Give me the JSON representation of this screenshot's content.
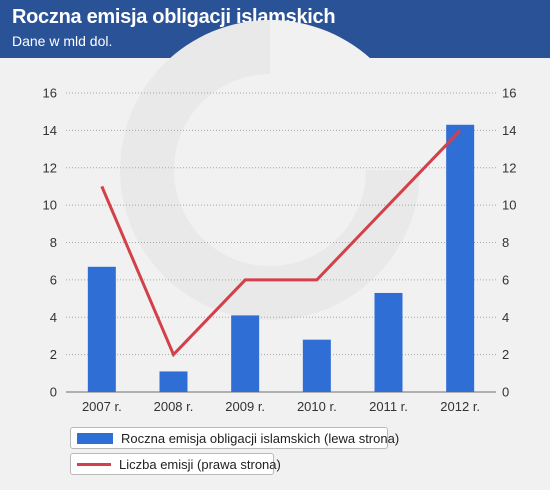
{
  "header": {
    "title": "Roczna emisja obligacji islamskich",
    "subtitle": "Dane w mld dol."
  },
  "colors": {
    "header_bg": "#2a5296",
    "bar": "#2f6fd5",
    "line": "#d4404a"
  },
  "chart_data": {
    "type": "bar",
    "categories": [
      "2007 r.",
      "2008 r.",
      "2009 r.",
      "2010 r.",
      "2011 r.",
      "2012 r."
    ],
    "series": [
      {
        "name": "Roczna emisja obligacji islamskich (lewa strona)",
        "type": "bar",
        "axis": "left",
        "values": [
          6.7,
          1.1,
          4.1,
          2.8,
          5.3,
          14.3
        ]
      },
      {
        "name": "Liczba emisji (prawa strona)",
        "type": "line",
        "axis": "right",
        "values": [
          11,
          2,
          6,
          6,
          10,
          14
        ]
      }
    ],
    "y_left": {
      "min": 0,
      "max": 16,
      "ticks": [
        "0",
        "2",
        "4",
        "6",
        "8",
        "10",
        "12",
        "14",
        "16"
      ]
    },
    "y_right": {
      "min": 0,
      "max": 16,
      "ticks": [
        "0",
        "2",
        "4",
        "6",
        "8",
        "10",
        "12",
        "14",
        "16"
      ]
    },
    "grid": true,
    "legend_position": "bottom-left"
  }
}
